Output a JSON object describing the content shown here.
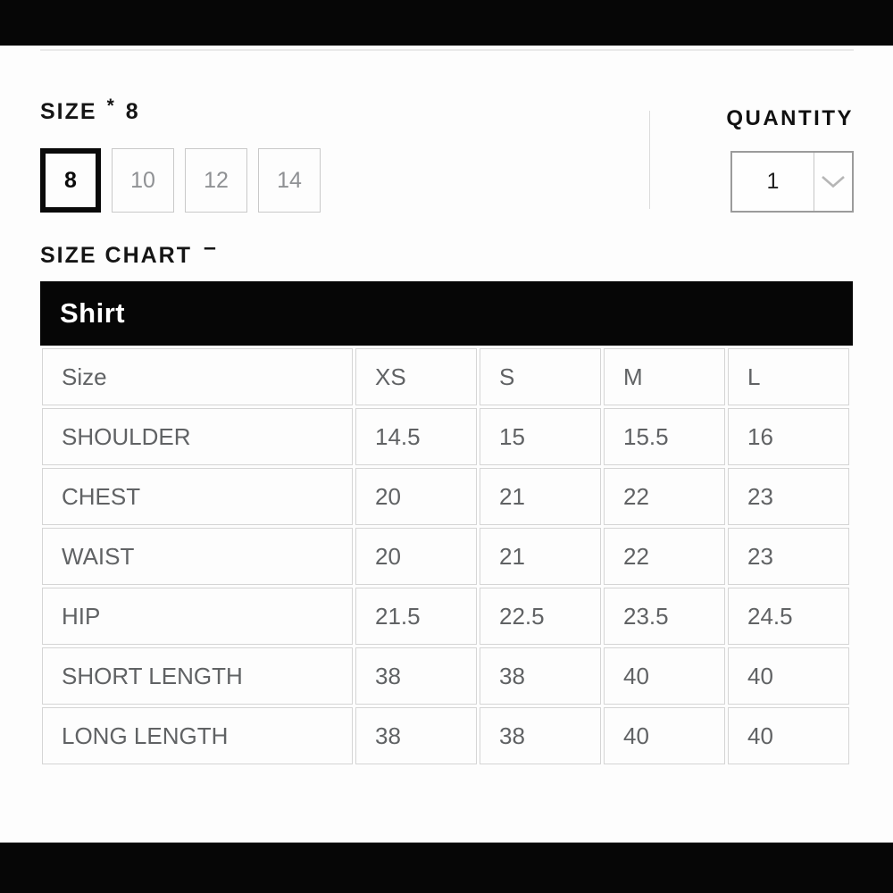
{
  "size_selector": {
    "label": "SIZE",
    "required_marker": "*",
    "selected_value": "8",
    "options": [
      {
        "label": "8",
        "selected": true
      },
      {
        "label": "10",
        "selected": false
      },
      {
        "label": "12",
        "selected": false
      },
      {
        "label": "14",
        "selected": false
      }
    ]
  },
  "quantity": {
    "label": "QUANTITY",
    "value": "1",
    "dropdown_icon": "chevron-down-icon"
  },
  "size_chart": {
    "label": "SIZE CHART",
    "collapse_indicator": "–",
    "table": {
      "title": "Shirt",
      "columns": [
        "Size",
        "XS",
        "S",
        "M",
        "L"
      ],
      "rows": [
        {
          "label": "SHOULDER",
          "values": [
            "14.5",
            "15",
            "15.5",
            "16"
          ]
        },
        {
          "label": "CHEST",
          "values": [
            "20",
            "21",
            "22",
            "23"
          ]
        },
        {
          "label": "WAIST",
          "values": [
            "20",
            "21",
            "22",
            "23"
          ]
        },
        {
          "label": "HIP",
          "values": [
            "21.5",
            "22.5",
            "23.5",
            "24.5"
          ]
        },
        {
          "label": "SHORT LENGTH",
          "values": [
            "38",
            "38",
            "40",
            "40"
          ]
        },
        {
          "label": "LONG LENGTH",
          "values": [
            "38",
            "38",
            "40",
            "40"
          ]
        }
      ]
    }
  },
  "colors": {
    "chrome_bar": "#060606",
    "table_header_bg": "#060606",
    "table_header_text": "#ffffff",
    "cell_border": "#d5d5d5",
    "cell_text": "#606264",
    "option_border": "#c9c9c9",
    "option_text": "#8f9194",
    "selected_option_border": "#0a0a0a",
    "dropdown_border": "#9b9b9b",
    "chevron": "#b6b6b6"
  }
}
